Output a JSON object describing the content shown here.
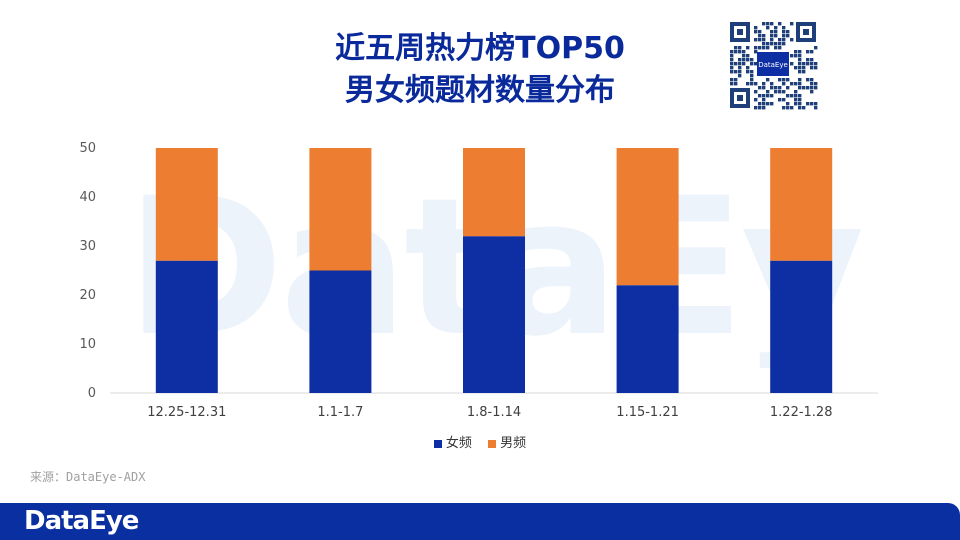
{
  "title": {
    "line1": "近五周热力榜TOP50",
    "line2": "男女频题材数量分布"
  },
  "watermark_text": "DataEye",
  "qr_label": "DataEye",
  "source": "来源：DataEye-ADX",
  "footer_logo": "DataEye",
  "colors": {
    "female": "#0e2ea3",
    "male": "#ed7d31",
    "title": "#0a2a9c",
    "footer": "#0a2fa0"
  },
  "chart_data": {
    "type": "bar",
    "stacked": true,
    "categories": [
      "12.25-12.31",
      "1.1-1.7",
      "1.8-1.14",
      "1.15-1.21",
      "1.22-1.28"
    ],
    "series": [
      {
        "name": "女频",
        "values": [
          27,
          25,
          32,
          22,
          27
        ]
      },
      {
        "name": "男频",
        "values": [
          23,
          25,
          18,
          28,
          23
        ]
      }
    ],
    "y_ticks": [
      0,
      10,
      20,
      30,
      40,
      50
    ],
    "ylim": [
      0,
      50
    ],
    "grid": false,
    "legend": "bottom"
  }
}
